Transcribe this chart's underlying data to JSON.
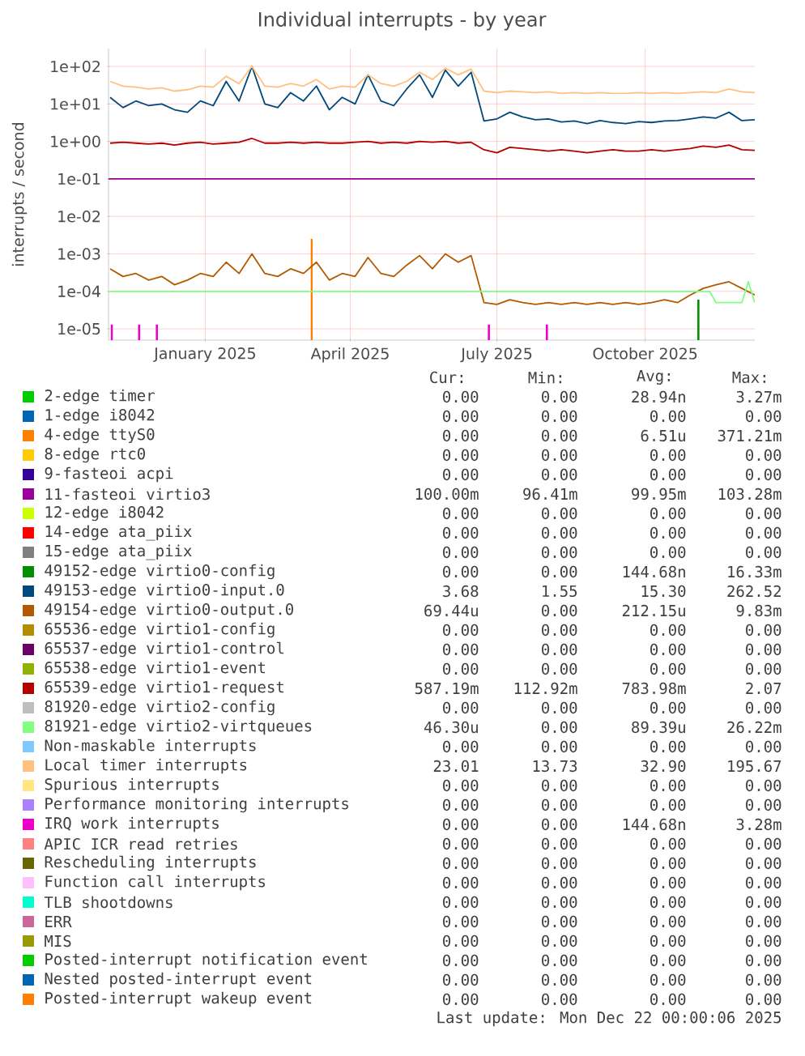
{
  "chart_data": {
    "type": "line",
    "title": "Individual interrupts - by year",
    "ylabel": "interrupts / second",
    "x": [
      "2024-11-03",
      "2024-11-11",
      "2024-11-19",
      "2024-11-27",
      "2024-12-05",
      "2024-12-13",
      "2024-12-21",
      "2024-12-29",
      "2025-01-06",
      "2025-01-14",
      "2025-01-22",
      "2025-01-30",
      "2025-02-07",
      "2025-02-15",
      "2025-02-23",
      "2025-03-03",
      "2025-03-11",
      "2025-03-19",
      "2025-03-27",
      "2025-04-04",
      "2025-04-12",
      "2025-04-20",
      "2025-04-28",
      "2025-05-06",
      "2025-05-14",
      "2025-05-22",
      "2025-05-30",
      "2025-06-07",
      "2025-06-15",
      "2025-06-23",
      "2025-07-01",
      "2025-07-09",
      "2025-07-17",
      "2025-07-25",
      "2025-08-02",
      "2025-08-10",
      "2025-08-18",
      "2025-08-26",
      "2025-09-03",
      "2025-09-11",
      "2025-09-19",
      "2025-09-27",
      "2025-10-05",
      "2025-10-13",
      "2025-10-21",
      "2025-10-29",
      "2025-11-06",
      "2025-11-14",
      "2025-11-22",
      "2025-11-30",
      "2025-12-08"
    ],
    "xlim": [
      "2024-11-02",
      "2025-12-08"
    ],
    "xticks": [
      {
        "value": "2025-01-01",
        "label": "January 2025"
      },
      {
        "value": "2025-04-01",
        "label": "April 2025"
      },
      {
        "value": "2025-07-01",
        "label": "July 2025"
      },
      {
        "value": "2025-10-01",
        "label": "October 2025"
      }
    ],
    "ylim": [
      5e-06,
      300
    ],
    "yticks": [
      {
        "value": 100,
        "label": "1e+02"
      },
      {
        "value": 10,
        "label": "1e+01"
      },
      {
        "value": 1,
        "label": "1e+00"
      },
      {
        "value": 0.1,
        "label": "1e-01"
      },
      {
        "value": 0.01,
        "label": "1e-02"
      },
      {
        "value": 0.001,
        "label": "1e-03"
      },
      {
        "value": 0.0001,
        "label": "1e-04"
      },
      {
        "value": 1e-05,
        "label": "1e-05"
      }
    ],
    "log": "y",
    "grid": true,
    "legend": "bottom",
    "series": [
      {
        "name": "2-edge timer",
        "color": "#00cc00",
        "values": [
          null,
          null,
          null,
          null,
          null,
          null,
          null,
          null,
          null,
          null,
          null,
          null,
          null,
          null,
          null,
          null,
          null,
          null,
          null,
          null,
          null,
          null,
          null,
          null,
          null,
          null,
          null,
          null,
          null,
          null,
          null,
          null,
          null,
          null,
          null,
          null,
          null,
          null,
          null,
          null,
          null,
          null,
          null,
          null,
          null,
          null,
          null,
          null,
          null,
          null,
          null
        ]
      },
      {
        "name": "1-edge i8042",
        "color": "#0066b3",
        "values": [
          null,
          null,
          null,
          null,
          null,
          null,
          null,
          null,
          null,
          null,
          null,
          null,
          null,
          null,
          null,
          null,
          null,
          null,
          null,
          null,
          null,
          null,
          null,
          null,
          null,
          null,
          null,
          null,
          null,
          null,
          null,
          null,
          null,
          null,
          null,
          null,
          null,
          null,
          null,
          null,
          null,
          null,
          null,
          null,
          null,
          null,
          null,
          null,
          null,
          null,
          null
        ]
      },
      {
        "name": "4-edge ttyS0",
        "color": "#ff8000",
        "type": "bar",
        "x": [
          "2025-03-08"
        ],
        "values": [
          0.0025
        ]
      },
      {
        "name": "8-edge rtc0",
        "color": "#ffcc00",
        "values": [
          null,
          null,
          null,
          null,
          null,
          null,
          null,
          null,
          null,
          null,
          null,
          null,
          null,
          null,
          null,
          null,
          null,
          null,
          null,
          null,
          null,
          null,
          null,
          null,
          null,
          null,
          null,
          null,
          null,
          null,
          null,
          null,
          null,
          null,
          null,
          null,
          null,
          null,
          null,
          null,
          null,
          null,
          null,
          null,
          null,
          null,
          null,
          null,
          null,
          null,
          null
        ]
      },
      {
        "name": "9-fasteoi acpi",
        "color": "#330099",
        "values": [
          null,
          null,
          null,
          null,
          null,
          null,
          null,
          null,
          null,
          null,
          null,
          null,
          null,
          null,
          null,
          null,
          null,
          null,
          null,
          null,
          null,
          null,
          null,
          null,
          null,
          null,
          null,
          null,
          null,
          null,
          null,
          null,
          null,
          null,
          null,
          null,
          null,
          null,
          null,
          null,
          null,
          null,
          null,
          null,
          null,
          null,
          null,
          null,
          null,
          null,
          null
        ]
      },
      {
        "name": "11-fasteoi virtio3",
        "color": "#990099",
        "x": [
          "2024-11-02",
          "2025-12-08"
        ],
        "values": [
          0.1,
          0.1
        ]
      },
      {
        "name": "12-edge i8042",
        "color": "#ccff00",
        "values": [
          null,
          null,
          null,
          null,
          null,
          null,
          null,
          null,
          null,
          null,
          null,
          null,
          null,
          null,
          null,
          null,
          null,
          null,
          null,
          null,
          null,
          null,
          null,
          null,
          null,
          null,
          null,
          null,
          null,
          null,
          null,
          null,
          null,
          null,
          null,
          null,
          null,
          null,
          null,
          null,
          null,
          null,
          null,
          null,
          null,
          null,
          null,
          null,
          null,
          null,
          null
        ]
      },
      {
        "name": "14-edge ata_piix",
        "color": "#ff0000",
        "values": [
          null,
          null,
          null,
          null,
          null,
          null,
          null,
          null,
          null,
          null,
          null,
          null,
          null,
          null,
          null,
          null,
          null,
          null,
          null,
          null,
          null,
          null,
          null,
          null,
          null,
          null,
          null,
          null,
          null,
          null,
          null,
          null,
          null,
          null,
          null,
          null,
          null,
          null,
          null,
          null,
          null,
          null,
          null,
          null,
          null,
          null,
          null,
          null,
          null,
          null,
          null
        ]
      },
      {
        "name": "15-edge ata_piix",
        "color": "#808080",
        "values": [
          null,
          null,
          null,
          null,
          null,
          null,
          null,
          null,
          null,
          null,
          null,
          null,
          null,
          null,
          null,
          null,
          null,
          null,
          null,
          null,
          null,
          null,
          null,
          null,
          null,
          null,
          null,
          null,
          null,
          null,
          null,
          null,
          null,
          null,
          null,
          null,
          null,
          null,
          null,
          null,
          null,
          null,
          null,
          null,
          null,
          null,
          null,
          null,
          null,
          null,
          null
        ]
      },
      {
        "name": "49152-edge virtio0-config",
        "color": "#008f00",
        "type": "bar",
        "x": [
          "2025-11-03"
        ],
        "values": [
          6e-05
        ]
      },
      {
        "name": "49153-edge virtio0-input.0",
        "color": "#00487d",
        "values": [
          15,
          8,
          12,
          9,
          10,
          7,
          6,
          12,
          9,
          40,
          12,
          100,
          10,
          8,
          20,
          12,
          30,
          7,
          15,
          10,
          60,
          12,
          9,
          25,
          60,
          15,
          80,
          30,
          70,
          3.5,
          4,
          6,
          4.5,
          3.8,
          4,
          3.3,
          3.5,
          3,
          3.6,
          3.2,
          3,
          3.4,
          3.2,
          3.5,
          3.6,
          4,
          4.5,
          4.2,
          6,
          3.6,
          3.8
        ]
      },
      {
        "name": "49154-edge virtio0-output.0",
        "color": "#b35a00",
        "values": [
          0.0004,
          0.00025,
          0.0003,
          0.0002,
          0.00025,
          0.00015,
          0.0002,
          0.0003,
          0.00025,
          0.0006,
          0.0003,
          0.001,
          0.0003,
          0.00025,
          0.0004,
          0.0003,
          0.0006,
          0.0002,
          0.0003,
          0.00025,
          0.0008,
          0.0003,
          0.00025,
          0.0005,
          0.0009,
          0.0004,
          0.001,
          0.0006,
          0.0009,
          5e-05,
          4.5e-05,
          6e-05,
          5e-05,
          4.5e-05,
          5e-05,
          4.5e-05,
          5e-05,
          4.5e-05,
          5e-05,
          4.5e-05,
          5e-05,
          4.5e-05,
          5e-05,
          6e-05,
          5e-05,
          8e-05,
          0.00012,
          0.00015,
          0.00018,
          0.00012,
          8e-05
        ]
      },
      {
        "name": "65536-edge virtio1-config",
        "color": "#b38f00",
        "values": [
          null,
          null,
          null,
          null,
          null,
          null,
          null,
          null,
          null,
          null,
          null,
          null,
          null,
          null,
          null,
          null,
          null,
          null,
          null,
          null,
          null,
          null,
          null,
          null,
          null,
          null,
          null,
          null,
          null,
          null,
          null,
          null,
          null,
          null,
          null,
          null,
          null,
          null,
          null,
          null,
          null,
          null,
          null,
          null,
          null,
          null,
          null,
          null,
          null,
          null,
          null
        ]
      },
      {
        "name": "65537-edge virtio1-control",
        "color": "#6b006b",
        "values": [
          null,
          null,
          null,
          null,
          null,
          null,
          null,
          null,
          null,
          null,
          null,
          null,
          null,
          null,
          null,
          null,
          null,
          null,
          null,
          null,
          null,
          null,
          null,
          null,
          null,
          null,
          null,
          null,
          null,
          null,
          null,
          null,
          null,
          null,
          null,
          null,
          null,
          null,
          null,
          null,
          null,
          null,
          null,
          null,
          null,
          null,
          null,
          null,
          null,
          null,
          null
        ]
      },
      {
        "name": "65538-edge virtio1-event",
        "color": "#8fb300",
        "values": [
          null,
          null,
          null,
          null,
          null,
          null,
          null,
          null,
          null,
          null,
          null,
          null,
          null,
          null,
          null,
          null,
          null,
          null,
          null,
          null,
          null,
          null,
          null,
          null,
          null,
          null,
          null,
          null,
          null,
          null,
          null,
          null,
          null,
          null,
          null,
          null,
          null,
          null,
          null,
          null,
          null,
          null,
          null,
          null,
          null,
          null,
          null,
          null,
          null,
          null,
          null
        ]
      },
      {
        "name": "65539-edge virtio1-request",
        "color": "#b30000",
        "values": [
          0.9,
          0.95,
          0.9,
          0.85,
          0.9,
          0.8,
          0.9,
          0.95,
          0.85,
          0.9,
          0.95,
          1.2,
          0.9,
          0.9,
          0.95,
          0.9,
          0.95,
          0.9,
          0.9,
          0.95,
          1.0,
          0.9,
          0.95,
          0.9,
          1.0,
          0.95,
          1.0,
          0.9,
          0.95,
          0.6,
          0.5,
          0.7,
          0.65,
          0.6,
          0.55,
          0.6,
          0.55,
          0.5,
          0.55,
          0.6,
          0.55,
          0.55,
          0.6,
          0.55,
          0.6,
          0.65,
          0.75,
          0.7,
          0.8,
          0.6,
          0.58
        ]
      },
      {
        "name": "81920-edge virtio2-config",
        "color": "#bebebe",
        "values": [
          null,
          null,
          null,
          null,
          null,
          null,
          null,
          null,
          null,
          null,
          null,
          null,
          null,
          null,
          null,
          null,
          null,
          null,
          null,
          null,
          null,
          null,
          null,
          null,
          null,
          null,
          null,
          null,
          null,
          null,
          null,
          null,
          null,
          null,
          null,
          null,
          null,
          null,
          null,
          null,
          null,
          null,
          null,
          null,
          null,
          null,
          null,
          null,
          null,
          null,
          null
        ]
      },
      {
        "name": "81921-edge virtio2-virtqueues",
        "color": "#80ff80",
        "x": [
          "2024-11-02",
          "2025-11-10",
          "2025-11-14",
          "2025-11-30",
          "2025-12-04",
          "2025-12-08"
        ],
        "values": [
          0.0001,
          0.0001,
          5e-05,
          5e-05,
          0.00018,
          5e-05
        ]
      },
      {
        "name": "Non-maskable interrupts",
        "color": "#80c9ff",
        "values": [
          null,
          null,
          null,
          null,
          null,
          null,
          null,
          null,
          null,
          null,
          null,
          null,
          null,
          null,
          null,
          null,
          null,
          null,
          null,
          null,
          null,
          null,
          null,
          null,
          null,
          null,
          null,
          null,
          null,
          null,
          null,
          null,
          null,
          null,
          null,
          null,
          null,
          null,
          null,
          null,
          null,
          null,
          null,
          null,
          null,
          null,
          null,
          null,
          null,
          null,
          null
        ]
      },
      {
        "name": "Local timer interrupts",
        "color": "#ffc080",
        "values": [
          40,
          30,
          28,
          25,
          27,
          22,
          24,
          30,
          28,
          55,
          35,
          100,
          30,
          28,
          35,
          30,
          45,
          25,
          30,
          28,
          60,
          35,
          30,
          40,
          70,
          45,
          90,
          60,
          85,
          22,
          20,
          22,
          21,
          20,
          21,
          19,
          20,
          19,
          20,
          19,
          19,
          20,
          19,
          20,
          19,
          20,
          21,
          20,
          25,
          21,
          20
        ]
      },
      {
        "name": "Spurious interrupts",
        "color": "#ffe680",
        "values": [
          null,
          null,
          null,
          null,
          null,
          null,
          null,
          null,
          null,
          null,
          null,
          null,
          null,
          null,
          null,
          null,
          null,
          null,
          null,
          null,
          null,
          null,
          null,
          null,
          null,
          null,
          null,
          null,
          null,
          null,
          null,
          null,
          null,
          null,
          null,
          null,
          null,
          null,
          null,
          null,
          null,
          null,
          null,
          null,
          null,
          null,
          null,
          null,
          null,
          null,
          null
        ]
      },
      {
        "name": "Performance monitoring interrupts",
        "color": "#aa80ff",
        "values": [
          null,
          null,
          null,
          null,
          null,
          null,
          null,
          null,
          null,
          null,
          null,
          null,
          null,
          null,
          null,
          null,
          null,
          null,
          null,
          null,
          null,
          null,
          null,
          null,
          null,
          null,
          null,
          null,
          null,
          null,
          null,
          null,
          null,
          null,
          null,
          null,
          null,
          null,
          null,
          null,
          null,
          null,
          null,
          null,
          null,
          null,
          null,
          null,
          null,
          null,
          null
        ]
      },
      {
        "name": "IRQ work interrupts",
        "color": "#ee00cc",
        "type": "bar",
        "x": [
          "2024-11-04",
          "2024-11-21",
          "2024-12-02",
          "2025-06-26",
          "2025-08-01"
        ],
        "values": [
          1.3e-05,
          1.3e-05,
          1.3e-05,
          1.3e-05,
          1.3e-05
        ]
      },
      {
        "name": "APIC ICR read retries",
        "color": "#ff8080",
        "values": [
          null,
          null,
          null,
          null,
          null,
          null,
          null,
          null,
          null,
          null,
          null,
          null,
          null,
          null,
          null,
          null,
          null,
          null,
          null,
          null,
          null,
          null,
          null,
          null,
          null,
          null,
          null,
          null,
          null,
          null,
          null,
          null,
          null,
          null,
          null,
          null,
          null,
          null,
          null,
          null,
          null,
          null,
          null,
          null,
          null,
          null,
          null,
          null,
          null,
          null,
          null
        ]
      },
      {
        "name": "Rescheduling interrupts",
        "color": "#666600",
        "values": [
          null,
          null,
          null,
          null,
          null,
          null,
          null,
          null,
          null,
          null,
          null,
          null,
          null,
          null,
          null,
          null,
          null,
          null,
          null,
          null,
          null,
          null,
          null,
          null,
          null,
          null,
          null,
          null,
          null,
          null,
          null,
          null,
          null,
          null,
          null,
          null,
          null,
          null,
          null,
          null,
          null,
          null,
          null,
          null,
          null,
          null,
          null,
          null,
          null,
          null,
          null
        ]
      },
      {
        "name": "Function call interrupts",
        "color": "#ffbfff",
        "values": [
          null,
          null,
          null,
          null,
          null,
          null,
          null,
          null,
          null,
          null,
          null,
          null,
          null,
          null,
          null,
          null,
          null,
          null,
          null,
          null,
          null,
          null,
          null,
          null,
          null,
          null,
          null,
          null,
          null,
          null,
          null,
          null,
          null,
          null,
          null,
          null,
          null,
          null,
          null,
          null,
          null,
          null,
          null,
          null,
          null,
          null,
          null,
          null,
          null,
          null,
          null
        ]
      },
      {
        "name": "TLB shootdowns",
        "color": "#00ffcc",
        "values": [
          null,
          null,
          null,
          null,
          null,
          null,
          null,
          null,
          null,
          null,
          null,
          null,
          null,
          null,
          null,
          null,
          null,
          null,
          null,
          null,
          null,
          null,
          null,
          null,
          null,
          null,
          null,
          null,
          null,
          null,
          null,
          null,
          null,
          null,
          null,
          null,
          null,
          null,
          null,
          null,
          null,
          null,
          null,
          null,
          null,
          null,
          null,
          null,
          null,
          null,
          null
        ]
      },
      {
        "name": "ERR",
        "color": "#cc6699",
        "values": [
          null,
          null,
          null,
          null,
          null,
          null,
          null,
          null,
          null,
          null,
          null,
          null,
          null,
          null,
          null,
          null,
          null,
          null,
          null,
          null,
          null,
          null,
          null,
          null,
          null,
          null,
          null,
          null,
          null,
          null,
          null,
          null,
          null,
          null,
          null,
          null,
          null,
          null,
          null,
          null,
          null,
          null,
          null,
          null,
          null,
          null,
          null,
          null,
          null,
          null,
          null
        ]
      },
      {
        "name": "MIS",
        "color": "#999900",
        "values": [
          null,
          null,
          null,
          null,
          null,
          null,
          null,
          null,
          null,
          null,
          null,
          null,
          null,
          null,
          null,
          null,
          null,
          null,
          null,
          null,
          null,
          null,
          null,
          null,
          null,
          null,
          null,
          null,
          null,
          null,
          null,
          null,
          null,
          null,
          null,
          null,
          null,
          null,
          null,
          null,
          null,
          null,
          null,
          null,
          null,
          null,
          null,
          null,
          null,
          null,
          null
        ]
      },
      {
        "name": "Posted-interrupt notification event",
        "color": "#00cc00",
        "values": [
          null,
          null,
          null,
          null,
          null,
          null,
          null,
          null,
          null,
          null,
          null,
          null,
          null,
          null,
          null,
          null,
          null,
          null,
          null,
          null,
          null,
          null,
          null,
          null,
          null,
          null,
          null,
          null,
          null,
          null,
          null,
          null,
          null,
          null,
          null,
          null,
          null,
          null,
          null,
          null,
          null,
          null,
          null,
          null,
          null,
          null,
          null,
          null,
          null,
          null,
          null
        ]
      },
      {
        "name": "Nested posted-interrupt event",
        "color": "#0066b3",
        "values": [
          null,
          null,
          null,
          null,
          null,
          null,
          null,
          null,
          null,
          null,
          null,
          null,
          null,
          null,
          null,
          null,
          null,
          null,
          null,
          null,
          null,
          null,
          null,
          null,
          null,
          null,
          null,
          null,
          null,
          null,
          null,
          null,
          null,
          null,
          null,
          null,
          null,
          null,
          null,
          null,
          null,
          null,
          null,
          null,
          null,
          null,
          null,
          null,
          null,
          null,
          null
        ]
      },
      {
        "name": "Posted-interrupt wakeup event",
        "color": "#ff8000",
        "values": [
          null,
          null,
          null,
          null,
          null,
          null,
          null,
          null,
          null,
          null,
          null,
          null,
          null,
          null,
          null,
          null,
          null,
          null,
          null,
          null,
          null,
          null,
          null,
          null,
          null,
          null,
          null,
          null,
          null,
          null,
          null,
          null,
          null,
          null,
          null,
          null,
          null,
          null,
          null,
          null,
          null,
          null,
          null,
          null,
          null,
          null,
          null,
          null,
          null,
          null,
          null
        ]
      }
    ],
    "annotations": [
      "Cur:",
      "Min:",
      "Avg:",
      "Max:",
      "0.00",
      "0.00",
      "28.94n",
      "3.27m",
      "0.00",
      "0.00",
      "0.00",
      "0.00",
      "0.00",
      "0.00",
      "6.51u",
      "371.21m",
      "0.00",
      "0.00",
      "0.00",
      "0.00",
      "0.00",
      "0.00",
      "0.00",
      "0.00",
      "100.00m",
      "96.41m",
      "99.95m",
      "103.28m",
      "0.00",
      "0.00",
      "0.00",
      "0.00",
      "0.00",
      "0.00",
      "0.00",
      "0.00",
      "0.00",
      "0.00",
      "0.00",
      "0.00",
      "0.00",
      "0.00",
      "144.68n",
      "16.33m",
      "3.68",
      "1.55",
      "15.30",
      "262.52",
      "69.44u",
      "0.00",
      "212.15u",
      "9.83m",
      "0.00",
      "0.00",
      "0.00",
      "0.00",
      "0.00",
      "0.00",
      "0.00",
      "0.00",
      "0.00",
      "0.00",
      "0.00",
      "0.00",
      "587.19m",
      "112.92m",
      "783.98m",
      "2.07",
      "0.00",
      "0.00",
      "0.00",
      "0.00",
      "46.30u",
      "0.00",
      "89.39u",
      "26.22m",
      "0.00",
      "0.00",
      "0.00",
      "0.00",
      "23.01",
      "13.73",
      "32.90",
      "195.67",
      "0.00",
      "0.00",
      "0.00",
      "0.00",
      "0.00",
      "0.00",
      "0.00",
      "0.00",
      "0.00",
      "0.00",
      "144.68n",
      "3.28m",
      "0.00",
      "0.00",
      "0.00",
      "0.00",
      "0.00",
      "0.00",
      "0.00",
      "0.00",
      "0.00",
      "0.00",
      "0.00",
      "0.00",
      "0.00",
      "0.00",
      "0.00",
      "0.00",
      "0.00",
      "0.00",
      "0.00",
      "0.00",
      "0.00",
      "0.00",
      "0.00",
      "0.00",
      "0.00",
      "0.00",
      "0.00",
      "0.00",
      "0.00",
      "0.00",
      "0.00",
      "0.00",
      "0.00",
      "0.00",
      "0.00",
      "0.00",
      "Last update: Mon Dec 22 00:00:06 2025"
    ]
  }
}
